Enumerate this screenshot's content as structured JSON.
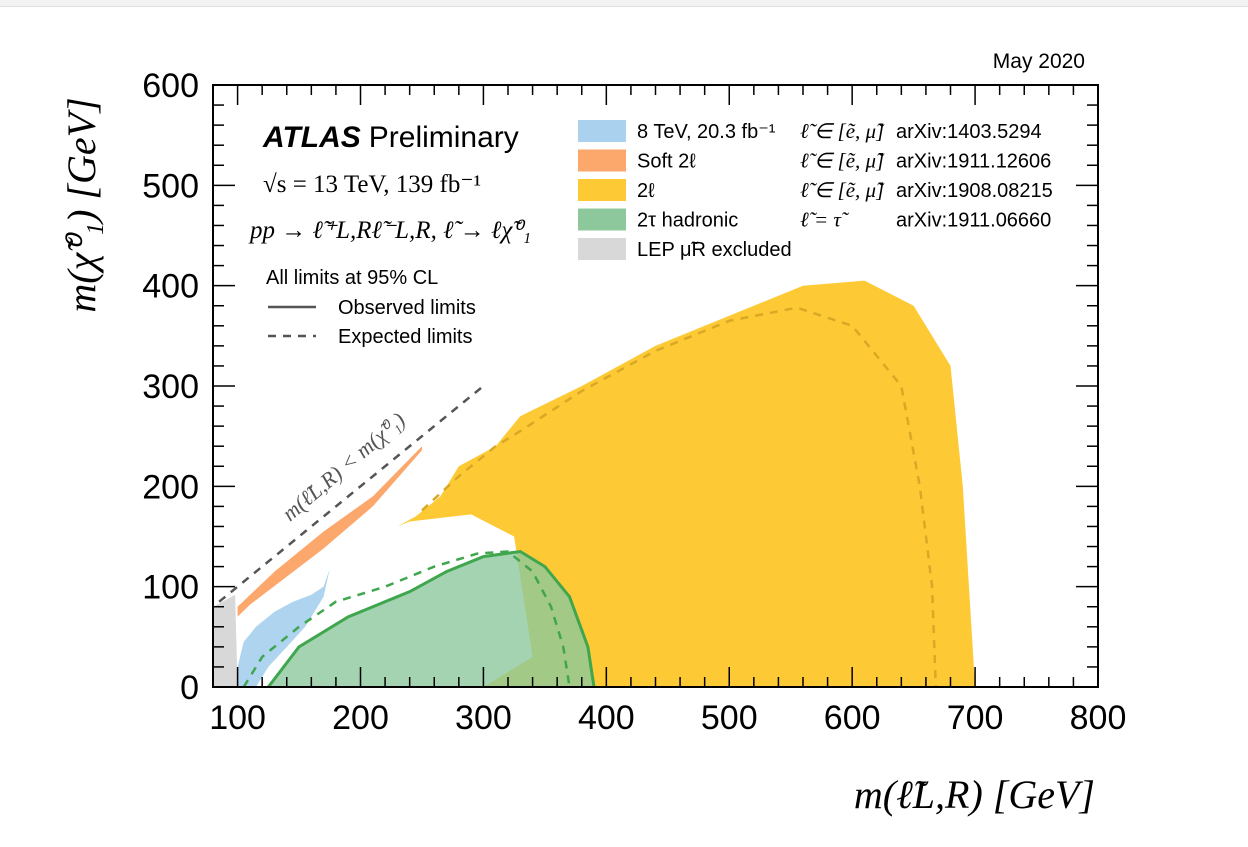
{
  "chart_data": {
    "type": "area",
    "date_label": "May 2020",
    "xlabel": "m(ℓ̃L,R) [GeV]",
    "ylabel": "m(χ̃⁰₁) [GeV]",
    "xlim": [
      80,
      800
    ],
    "ylim": [
      0,
      600
    ],
    "x_ticks": [
      100,
      200,
      300,
      400,
      500,
      600,
      700,
      800
    ],
    "y_ticks": [
      0,
      100,
      200,
      300,
      400,
      500,
      600
    ],
    "experiment": "ATLAS",
    "status": "Preliminary",
    "energy_lumi": "√s = 13 TeV, 139 fb⁻¹",
    "process": "pp → ℓ̃⁺L,Rℓ̃⁻L,R, ℓ̃ → ℓχ̃⁰₁",
    "cl_note": "All limits at 95% CL",
    "style_legend": [
      {
        "label": "Observed limits",
        "style": "solid"
      },
      {
        "label": "Expected limits",
        "style": "dashed"
      }
    ],
    "diagonal_label": "m(ℓ̃L,R) < m(χ̃⁰₁)",
    "series": [
      {
        "name": "8 TeV, 20.3 fb⁻¹",
        "flavour": "ℓ̃ ∈ [ẽ, μ̃]",
        "ref": "arXiv:1403.5294",
        "color": "#aad2ee",
        "observed": [
          [
            100,
            0
          ],
          [
            100,
            20
          ],
          [
            105,
            45
          ],
          [
            115,
            60
          ],
          [
            130,
            75
          ],
          [
            145,
            85
          ],
          [
            160,
            92
          ],
          [
            170,
            100
          ],
          [
            175,
            118
          ],
          [
            170,
            90
          ],
          [
            155,
            60
          ],
          [
            140,
            40
          ],
          [
            125,
            20
          ],
          [
            115,
            0
          ]
        ]
      },
      {
        "name": "Soft 2ℓ",
        "flavour": "ℓ̃ ∈ [ẽ, μ̃]",
        "ref": "arXiv:1911.12606",
        "color": "#fca76b",
        "observed": [
          [
            100,
            80
          ],
          [
            130,
            115
          ],
          [
            170,
            155
          ],
          [
            210,
            190
          ],
          [
            250,
            240
          ],
          [
            250,
            236
          ],
          [
            210,
            180
          ],
          [
            170,
            138
          ],
          [
            140,
            110
          ],
          [
            110,
            82
          ],
          [
            100,
            70
          ]
        ]
      },
      {
        "name": "2ℓ",
        "flavour": "ℓ̃ ∈ [ẽ, μ̃]",
        "ref": "arXiv:1908.08215",
        "color": "#fdca35",
        "observed": [
          [
            300,
            0
          ],
          [
            340,
            30
          ],
          [
            325,
            150
          ],
          [
            290,
            172
          ],
          [
            240,
            165
          ],
          [
            230,
            160
          ],
          [
            245,
            170
          ],
          [
            265,
            190
          ],
          [
            280,
            220
          ],
          [
            310,
            240
          ],
          [
            330,
            270
          ],
          [
            380,
            300
          ],
          [
            440,
            340
          ],
          [
            500,
            370
          ],
          [
            560,
            400
          ],
          [
            610,
            405
          ],
          [
            650,
            380
          ],
          [
            680,
            320
          ],
          [
            690,
            200
          ],
          [
            700,
            0
          ]
        ],
        "expected": [
          [
            250,
            176
          ],
          [
            280,
            210
          ],
          [
            310,
            240
          ],
          [
            330,
            255
          ],
          [
            380,
            295
          ],
          [
            440,
            335
          ],
          [
            500,
            365
          ],
          [
            555,
            378
          ],
          [
            600,
            360
          ],
          [
            640,
            300
          ],
          [
            655,
            200
          ],
          [
            665,
            100
          ],
          [
            668,
            0
          ]
        ]
      },
      {
        "name": "2τ hadronic",
        "flavour": "ℓ̃ = τ̃",
        "ref": "arXiv:1911.06660",
        "color": "#8cc89c",
        "observed": [
          [
            125,
            0
          ],
          [
            150,
            40
          ],
          [
            190,
            70
          ],
          [
            240,
            95
          ],
          [
            270,
            115
          ],
          [
            300,
            130
          ],
          [
            330,
            135
          ],
          [
            350,
            120
          ],
          [
            370,
            90
          ],
          [
            385,
            40
          ],
          [
            390,
            0
          ]
        ],
        "expected": [
          [
            105,
            0
          ],
          [
            120,
            30
          ],
          [
            150,
            60
          ],
          [
            180,
            85
          ],
          [
            220,
            100
          ],
          [
            260,
            120
          ],
          [
            295,
            133
          ],
          [
            320,
            135
          ],
          [
            340,
            115
          ],
          [
            355,
            80
          ],
          [
            365,
            40
          ],
          [
            370,
            0
          ]
        ]
      },
      {
        "name": "LEP μ̃R excluded",
        "flavour": "",
        "ref": "",
        "color": "#d8d8d8",
        "observed": [
          [
            80,
            0
          ],
          [
            80,
            80
          ],
          [
            98,
            92
          ],
          [
            100,
            0
          ]
        ]
      }
    ],
    "legend_position": "top-right"
  }
}
